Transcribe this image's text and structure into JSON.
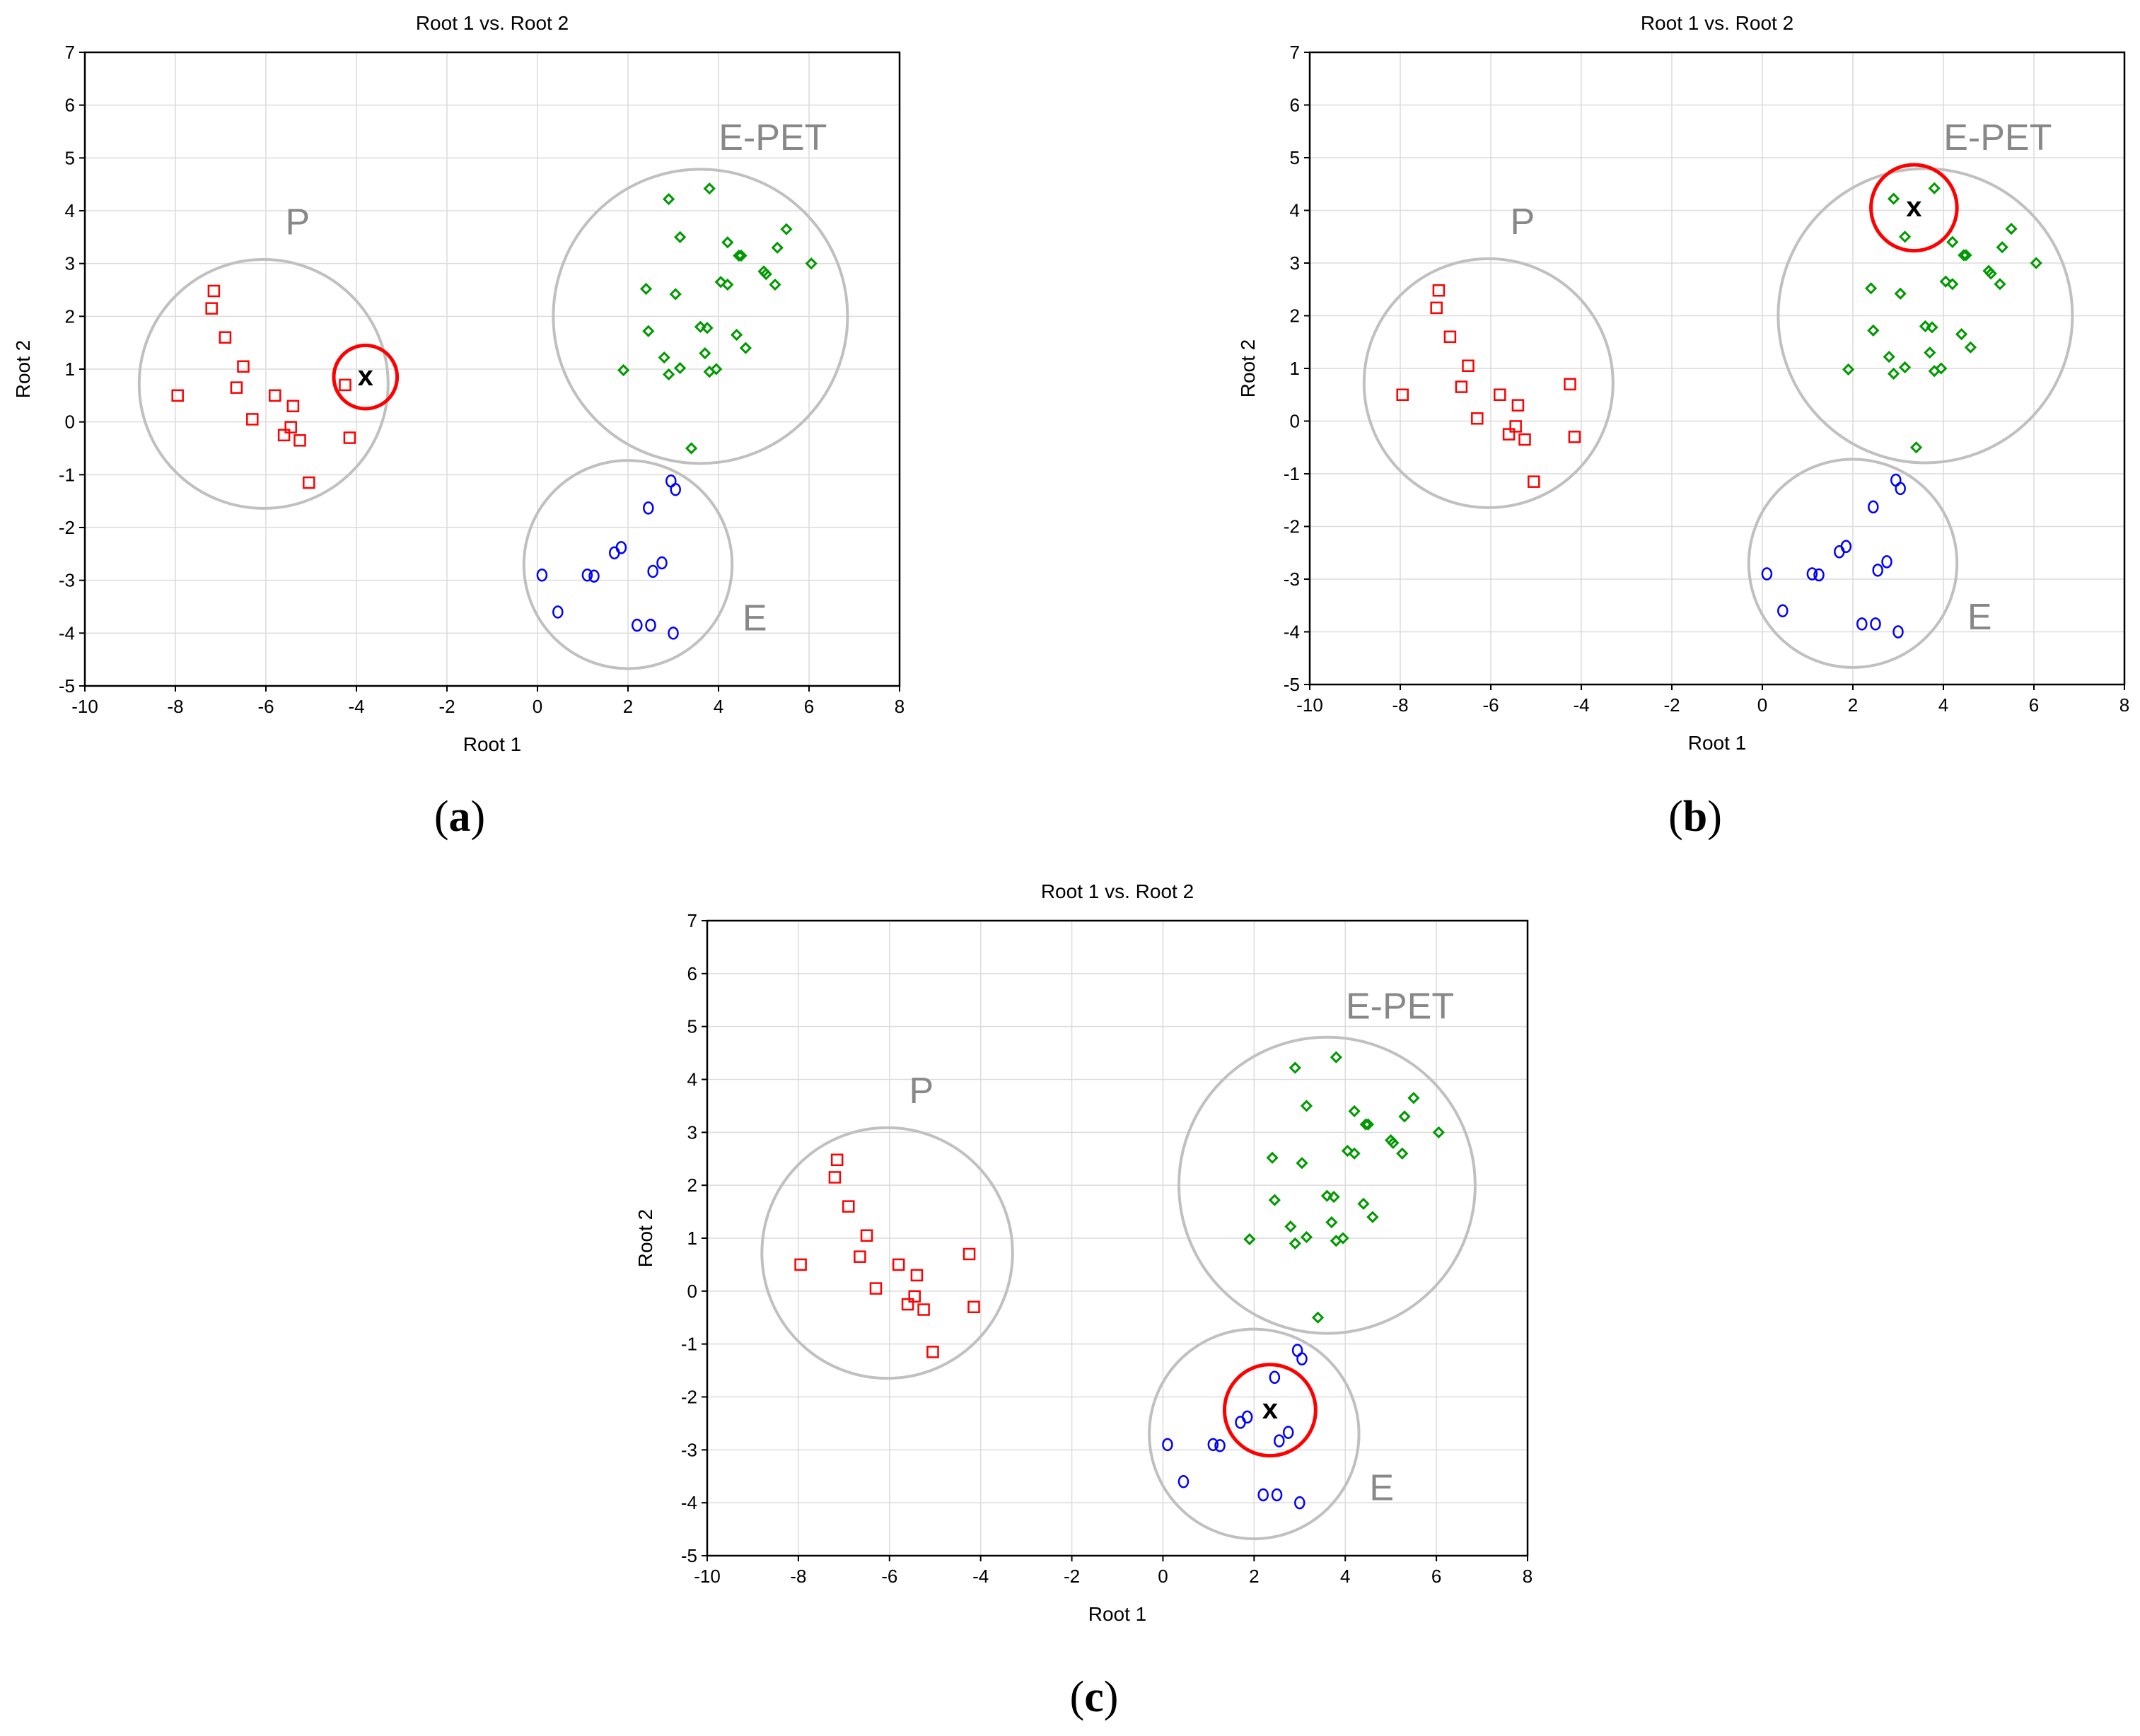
{
  "panels": [
    {
      "caption_letter": "a",
      "chart_data": {
        "type": "scatter",
        "title": "Root 1 vs. Root 2",
        "xlabel": "Root 1",
        "ylabel": "Root 2",
        "xlim": [
          -10,
          8
        ],
        "ylim": [
          -5,
          7
        ],
        "xticks": [
          -10,
          -8,
          -6,
          -4,
          -2,
          0,
          2,
          4,
          6,
          8
        ],
        "yticks": [
          -5,
          -4,
          -3,
          -2,
          -1,
          0,
          1,
          2,
          3,
          4,
          5,
          6,
          7
        ],
        "grid": true,
        "series": [
          {
            "name": "P",
            "marker": "square",
            "color": "#ff0000",
            "points": [
              [
                -7.95,
                0.5
              ],
              [
                -7.15,
                2.48
              ],
              [
                -7.2,
                2.15
              ],
              [
                -6.9,
                1.6
              ],
              [
                -6.5,
                1.05
              ],
              [
                -6.65,
                0.65
              ],
              [
                -6.3,
                0.05
              ],
              [
                -5.8,
                0.5
              ],
              [
                -5.4,
                0.3
              ],
              [
                -5.45,
                -0.1
              ],
              [
                -5.6,
                -0.25
              ],
              [
                -5.25,
                -0.35
              ],
              [
                -5.05,
                -1.15
              ],
              [
                -4.25,
                0.7
              ],
              [
                -4.15,
                -0.3
              ]
            ]
          },
          {
            "name": "E-PET",
            "marker": "diamond",
            "color": "#009900",
            "points": [
              [
                1.9,
                0.98
              ],
              [
                2.4,
                2.52
              ],
              [
                2.45,
                1.72
              ],
              [
                2.8,
                1.22
              ],
              [
                2.9,
                0.9
              ],
              [
                2.9,
                4.22
              ],
              [
                3.05,
                2.42
              ],
              [
                3.15,
                3.5
              ],
              [
                3.15,
                1.02
              ],
              [
                3.4,
                -0.5
              ],
              [
                3.6,
                1.8
              ],
              [
                3.7,
                1.3
              ],
              [
                3.75,
                1.78
              ],
              [
                3.8,
                4.42
              ],
              [
                3.8,
                0.95
              ],
              [
                3.95,
                1.0
              ],
              [
                4.05,
                2.65
              ],
              [
                4.2,
                3.4
              ],
              [
                4.2,
                2.6
              ],
              [
                4.4,
                1.65
              ],
              [
                4.45,
                3.15
              ],
              [
                4.5,
                3.15
              ],
              [
                4.6,
                1.4
              ],
              [
                5.0,
                2.85
              ],
              [
                5.05,
                2.8
              ],
              [
                5.25,
                2.6
              ],
              [
                5.3,
                3.3
              ],
              [
                5.5,
                3.65
              ],
              [
                6.05,
                3.0
              ]
            ]
          },
          {
            "name": "E",
            "marker": "circle",
            "color": "#0000ff",
            "points": [
              [
                0.1,
                -2.9
              ],
              [
                0.45,
                -3.6
              ],
              [
                1.1,
                -2.9
              ],
              [
                1.25,
                -2.92
              ],
              [
                1.7,
                -2.48
              ],
              [
                1.85,
                -2.38
              ],
              [
                2.2,
                -3.85
              ],
              [
                2.45,
                -1.63
              ],
              [
                2.5,
                -3.85
              ],
              [
                2.55,
                -2.83
              ],
              [
                2.75,
                -2.67
              ],
              [
                2.95,
                -1.12
              ],
              [
                3.05,
                -1.28
              ],
              [
                3.0,
                -4.0
              ]
            ]
          }
        ],
        "groups": [
          {
            "label": "P",
            "center": [
              -6.05,
              0.72
            ],
            "radius_x": 2.75
          },
          {
            "label": "E-PET",
            "center": [
              3.6,
              2.0
            ],
            "radius_x": 3.25
          },
          {
            "label": "E",
            "center": [
              2.0,
              -2.7
            ],
            "radius_x": 2.3
          }
        ],
        "unknown": {
          "label": "x",
          "point": [
            -3.8,
            0.85
          ],
          "radius_x": 0.7
        }
      }
    },
    {
      "caption_letter": "b",
      "chart_data": {
        "type": "scatter",
        "title": "Root 1 vs. Root 2",
        "xlabel": "Root 1",
        "ylabel": "Root 2",
        "xlim": [
          -10,
          8
        ],
        "ylim": [
          -5,
          7
        ],
        "xticks": [
          -10,
          -8,
          -6,
          -4,
          -2,
          0,
          2,
          4,
          6,
          8
        ],
        "yticks": [
          -5,
          -4,
          -3,
          -2,
          -1,
          0,
          1,
          2,
          3,
          4,
          5,
          6,
          7
        ],
        "grid": true,
        "series": [
          {
            "name": "P",
            "marker": "square",
            "color": "#ff0000",
            "points": [
              [
                -7.95,
                0.5
              ],
              [
                -7.15,
                2.48
              ],
              [
                -7.2,
                2.15
              ],
              [
                -6.9,
                1.6
              ],
              [
                -6.5,
                1.05
              ],
              [
                -6.65,
                0.65
              ],
              [
                -6.3,
                0.05
              ],
              [
                -5.8,
                0.5
              ],
              [
                -5.4,
                0.3
              ],
              [
                -5.45,
                -0.1
              ],
              [
                -5.6,
                -0.25
              ],
              [
                -5.25,
                -0.35
              ],
              [
                -5.05,
                -1.15
              ],
              [
                -4.25,
                0.7
              ],
              [
                -4.15,
                -0.3
              ]
            ]
          },
          {
            "name": "E-PET",
            "marker": "diamond",
            "color": "#009900",
            "points": [
              [
                1.9,
                0.98
              ],
              [
                2.4,
                2.52
              ],
              [
                2.45,
                1.72
              ],
              [
                2.8,
                1.22
              ],
              [
                2.9,
                0.9
              ],
              [
                2.9,
                4.22
              ],
              [
                3.05,
                2.42
              ],
              [
                3.15,
                3.5
              ],
              [
                3.15,
                1.02
              ],
              [
                3.4,
                -0.5
              ],
              [
                3.6,
                1.8
              ],
              [
                3.7,
                1.3
              ],
              [
                3.75,
                1.78
              ],
              [
                3.8,
                4.42
              ],
              [
                3.8,
                0.95
              ],
              [
                3.95,
                1.0
              ],
              [
                4.05,
                2.65
              ],
              [
                4.2,
                3.4
              ],
              [
                4.2,
                2.6
              ],
              [
                4.4,
                1.65
              ],
              [
                4.45,
                3.15
              ],
              [
                4.5,
                3.15
              ],
              [
                4.6,
                1.4
              ],
              [
                5.0,
                2.85
              ],
              [
                5.05,
                2.8
              ],
              [
                5.25,
                2.6
              ],
              [
                5.3,
                3.3
              ],
              [
                5.5,
                3.65
              ],
              [
                6.05,
                3.0
              ]
            ]
          },
          {
            "name": "E",
            "marker": "circle",
            "color": "#0000ff",
            "points": [
              [
                0.1,
                -2.9
              ],
              [
                0.45,
                -3.6
              ],
              [
                1.1,
                -2.9
              ],
              [
                1.25,
                -2.92
              ],
              [
                1.7,
                -2.48
              ],
              [
                1.85,
                -2.38
              ],
              [
                2.2,
                -3.85
              ],
              [
                2.45,
                -1.63
              ],
              [
                2.5,
                -3.85
              ],
              [
                2.55,
                -2.83
              ],
              [
                2.75,
                -2.67
              ],
              [
                2.95,
                -1.12
              ],
              [
                3.05,
                -1.28
              ],
              [
                3.0,
                -4.0
              ]
            ]
          }
        ],
        "groups": [
          {
            "label": "P",
            "center": [
              -6.05,
              0.72
            ],
            "radius_x": 2.75
          },
          {
            "label": "E-PET",
            "center": [
              3.6,
              2.0
            ],
            "radius_x": 3.25
          },
          {
            "label": "E",
            "center": [
              2.0,
              -2.7
            ],
            "radius_x": 2.3
          }
        ],
        "unknown": {
          "label": "x",
          "point": [
            3.35,
            4.05
          ],
          "radius_x": 0.95
        }
      }
    },
    {
      "caption_letter": "c",
      "chart_data": {
        "type": "scatter",
        "title": "Root 1 vs. Root 2",
        "xlabel": "Root 1",
        "ylabel": "Root 2",
        "xlim": [
          -10,
          8
        ],
        "ylim": [
          -5,
          7
        ],
        "xticks": [
          -10,
          -8,
          -6,
          -4,
          -2,
          0,
          2,
          4,
          6,
          8
        ],
        "yticks": [
          -5,
          -4,
          -3,
          -2,
          -1,
          0,
          1,
          2,
          3,
          4,
          5,
          6,
          7
        ],
        "grid": true,
        "series": [
          {
            "name": "P",
            "marker": "square",
            "color": "#ff0000",
            "points": [
              [
                -7.95,
                0.5
              ],
              [
                -7.15,
                2.48
              ],
              [
                -7.2,
                2.15
              ],
              [
                -6.9,
                1.6
              ],
              [
                -6.5,
                1.05
              ],
              [
                -6.65,
                0.65
              ],
              [
                -6.3,
                0.05
              ],
              [
                -5.8,
                0.5
              ],
              [
                -5.4,
                0.3
              ],
              [
                -5.45,
                -0.1
              ],
              [
                -5.6,
                -0.25
              ],
              [
                -5.25,
                -0.35
              ],
              [
                -5.05,
                -1.15
              ],
              [
                -4.25,
                0.7
              ],
              [
                -4.15,
                -0.3
              ]
            ]
          },
          {
            "name": "E-PET",
            "marker": "diamond",
            "color": "#009900",
            "points": [
              [
                1.9,
                0.98
              ],
              [
                2.4,
                2.52
              ],
              [
                2.45,
                1.72
              ],
              [
                2.8,
                1.22
              ],
              [
                2.9,
                0.9
              ],
              [
                2.9,
                4.22
              ],
              [
                3.05,
                2.42
              ],
              [
                3.15,
                3.5
              ],
              [
                3.15,
                1.02
              ],
              [
                3.4,
                -0.5
              ],
              [
                3.6,
                1.8
              ],
              [
                3.7,
                1.3
              ],
              [
                3.75,
                1.78
              ],
              [
                3.8,
                4.42
              ],
              [
                3.8,
                0.95
              ],
              [
                3.95,
                1.0
              ],
              [
                4.05,
                2.65
              ],
              [
                4.2,
                3.4
              ],
              [
                4.2,
                2.6
              ],
              [
                4.4,
                1.65
              ],
              [
                4.45,
                3.15
              ],
              [
                4.5,
                3.15
              ],
              [
                4.6,
                1.4
              ],
              [
                5.0,
                2.85
              ],
              [
                5.05,
                2.8
              ],
              [
                5.25,
                2.6
              ],
              [
                5.3,
                3.3
              ],
              [
                5.5,
                3.65
              ],
              [
                6.05,
                3.0
              ]
            ]
          },
          {
            "name": "E",
            "marker": "circle",
            "color": "#0000ff",
            "points": [
              [
                0.1,
                -2.9
              ],
              [
                0.45,
                -3.6
              ],
              [
                1.1,
                -2.9
              ],
              [
                1.25,
                -2.92
              ],
              [
                1.7,
                -2.48
              ],
              [
                1.85,
                -2.38
              ],
              [
                2.2,
                -3.85
              ],
              [
                2.45,
                -1.63
              ],
              [
                2.5,
                -3.85
              ],
              [
                2.55,
                -2.83
              ],
              [
                2.75,
                -2.67
              ],
              [
                2.95,
                -1.12
              ],
              [
                3.05,
                -1.28
              ],
              [
                3.0,
                -4.0
              ]
            ]
          }
        ],
        "groups": [
          {
            "label": "P",
            "center": [
              -6.05,
              0.72
            ],
            "radius_x": 2.75
          },
          {
            "label": "E-PET",
            "center": [
              3.6,
              2.0
            ],
            "radius_x": 3.25
          },
          {
            "label": "E",
            "center": [
              2.0,
              -2.7
            ],
            "radius_x": 2.3
          }
        ],
        "unknown": {
          "label": "x",
          "point": [
            2.35,
            -2.25
          ],
          "radius_x": 1.0
        }
      }
    }
  ]
}
